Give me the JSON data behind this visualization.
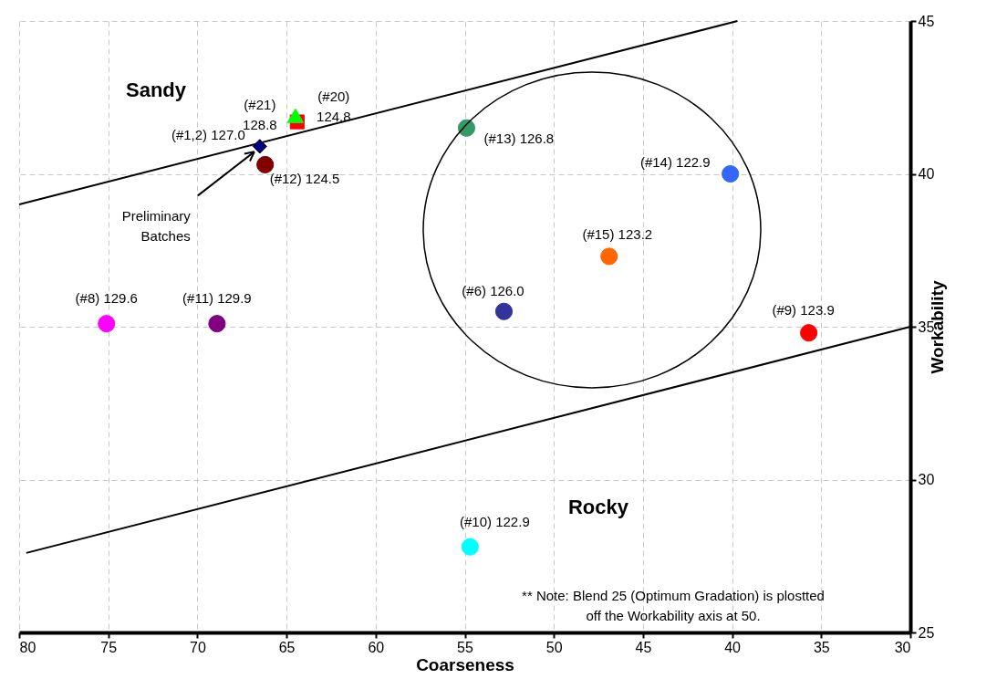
{
  "chart_data": {
    "type": "scatter",
    "xlabel": "Coarseness",
    "ylabel": "Workability",
    "xlim": [
      80,
      30
    ],
    "xticks": [
      80,
      75,
      70,
      65,
      60,
      55,
      50,
      45,
      40,
      35,
      30
    ],
    "ylim": [
      25,
      45
    ],
    "yticks": [
      25,
      30,
      35,
      40,
      45
    ],
    "grid": true,
    "legend": false,
    "marker": "circle",
    "series": [
      {
        "type": "line",
        "color": "#000000",
        "marker": "none",
        "x": [
          80,
          39.7
        ],
        "values": [
          39.0,
          45
        ]
      },
      {
        "type": "line",
        "color": "#000000",
        "marker": "none",
        "x": [
          79.6,
          30
        ],
        "values": [
          27.6,
          35.0
        ]
      },
      {
        "name": "(#8) 129.6",
        "color": "#ff00ff",
        "x": [
          75.1
        ],
        "values": [
          35.1
        ]
      },
      {
        "name": "(#11) 129.9",
        "color": "#800080",
        "x": [
          68.9
        ],
        "values": [
          35.1
        ]
      },
      {
        "name": "(#1,2) 127.0",
        "color": "#000080",
        "marker": "diamond",
        "x": [
          66.5
        ],
        "values": [
          40.9
        ]
      },
      {
        "name": "(#12) 124.5",
        "color": "#800000",
        "x": [
          66.2
        ],
        "values": [
          40.3
        ]
      },
      {
        "name": "(#20)\n124.8",
        "color": "#ff0000",
        "marker": "square",
        "x": [
          64.4
        ],
        "values": [
          41.7
        ]
      },
      {
        "name": "(#21)\n128.8",
        "color": "#00ff00",
        "marker": "triangle",
        "x": [
          64.5
        ],
        "values": [
          41.9
        ]
      },
      {
        "name": "(#13) 126.8",
        "color": "#339966",
        "x": [
          54.9
        ],
        "values": [
          41.5
        ]
      },
      {
        "name": "(#14) 122.9",
        "color": "#3366ff",
        "x": [
          40.1
        ],
        "values": [
          40.0
        ]
      },
      {
        "name": "(#15) 123.2",
        "color": "#ff6600",
        "x": [
          46.9
        ],
        "values": [
          37.3
        ]
      },
      {
        "name": "(#6) 126.0",
        "color": "#333399",
        "x": [
          52.8
        ],
        "values": [
          35.5
        ]
      },
      {
        "name": "(#9) 123.9",
        "color": "#ff0000",
        "x": [
          35.7
        ],
        "values": [
          34.8
        ]
      },
      {
        "name": "(#10) 122.9",
        "color": "#00ffff",
        "x": [
          54.7
        ],
        "values": [
          27.8
        ]
      }
    ],
    "annotations": [
      "Sandy",
      "Rocky",
      {
        "text": "Preliminary\nBatches",
        "x": 66.5,
        "y": 40.9
      },
      "** Note:  Blend 25 (Optimum Gradation) is plostted\noff the Workability axis at 50."
    ]
  }
}
